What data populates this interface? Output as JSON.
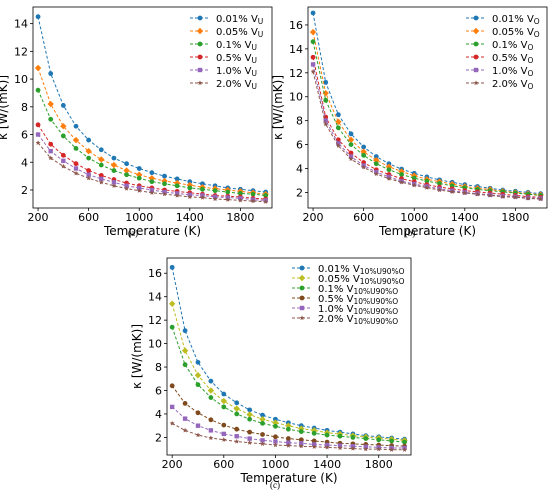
{
  "panels": [
    {
      "caption": "(a)"
    },
    {
      "caption": "(b)"
    },
    {
      "caption": "(c)"
    }
  ],
  "chart_data": [
    {
      "type": "line",
      "panel": "(a)",
      "xlabel": "Temperature (K)",
      "ylabel": "κ [W/(mK)]",
      "xlim": [
        160,
        2050
      ],
      "ylim": [
        0.7,
        15.2
      ],
      "xticks": [
        200,
        600,
        1000,
        1400,
        1800
      ],
      "yticks": [
        2,
        4,
        6,
        8,
        10,
        12,
        14
      ],
      "grid": false,
      "legend_position": "top-right",
      "x": [
        200,
        300,
        400,
        500,
        600,
        700,
        800,
        900,
        1000,
        1100,
        1200,
        1300,
        1400,
        1500,
        1600,
        1700,
        1800,
        1900,
        2000
      ],
      "series": [
        {
          "label_main": "0.01% V",
          "label_sub": "U",
          "color": "#1f77b4",
          "marker": "circle",
          "values": [
            14.5,
            10.4,
            8.1,
            6.6,
            5.6,
            4.9,
            4.3,
            3.9,
            3.55,
            3.25,
            3.0,
            2.8,
            2.6,
            2.45,
            2.3,
            2.15,
            2.05,
            1.95,
            1.85
          ]
        },
        {
          "label_main": "0.05% V",
          "label_sub": "U",
          "color": "#ff7f0e",
          "marker": "diamond",
          "values": [
            10.8,
            8.2,
            6.6,
            5.6,
            4.8,
            4.2,
            3.8,
            3.4,
            3.1,
            2.85,
            2.65,
            2.5,
            2.35,
            2.2,
            2.1,
            2.0,
            1.9,
            1.8,
            1.7
          ]
        },
        {
          "label_main": "0.1% V",
          "label_sub": "U",
          "color": "#2ca02c",
          "marker": "circle",
          "values": [
            9.2,
            7.1,
            5.9,
            5.0,
            4.3,
            3.8,
            3.4,
            3.1,
            2.85,
            2.6,
            2.45,
            2.3,
            2.15,
            2.05,
            1.95,
            1.85,
            1.75,
            1.7,
            1.6
          ]
        },
        {
          "label_main": "0.5% V",
          "label_sub": "U",
          "color": "#d62728",
          "marker": "circle",
          "values": [
            6.7,
            5.3,
            4.5,
            3.9,
            3.4,
            3.05,
            2.75,
            2.5,
            2.3,
            2.15,
            2.0,
            1.9,
            1.8,
            1.7,
            1.6,
            1.55,
            1.5,
            1.4,
            1.35
          ]
        },
        {
          "label_main": "1.0% V",
          "label_sub": "U",
          "color": "#9467bd",
          "marker": "square",
          "values": [
            6.0,
            4.8,
            4.1,
            3.55,
            3.1,
            2.8,
            2.55,
            2.3,
            2.15,
            2.0,
            1.85,
            1.75,
            1.65,
            1.6,
            1.5,
            1.45,
            1.4,
            1.3,
            1.25
          ]
        },
        {
          "label_main": "2.0% V",
          "label_sub": "U",
          "color": "#8c564b",
          "marker": "star",
          "values": [
            5.4,
            4.3,
            3.7,
            3.2,
            2.85,
            2.55,
            2.3,
            2.1,
            1.95,
            1.8,
            1.7,
            1.6,
            1.5,
            1.45,
            1.35,
            1.3,
            1.25,
            1.2,
            1.15
          ]
        }
      ]
    },
    {
      "type": "line",
      "panel": "(b)",
      "xlabel": "Temperature (K)",
      "ylabel": "κ [W/(mK)]",
      "xlim": [
        160,
        2050
      ],
      "ylim": [
        0.7,
        17.5
      ],
      "xticks": [
        200,
        600,
        1000,
        1400,
        1800
      ],
      "yticks": [
        2,
        4,
        6,
        8,
        10,
        12,
        14,
        16
      ],
      "grid": false,
      "legend_position": "top-right",
      "x": [
        200,
        300,
        400,
        500,
        600,
        700,
        800,
        900,
        1000,
        1100,
        1200,
        1300,
        1400,
        1500,
        1600,
        1700,
        1800,
        1900,
        2000
      ],
      "series": [
        {
          "label_main": "0.01% V",
          "label_sub": "O",
          "color": "#1f77b4",
          "marker": "circle",
          "values": [
            17.0,
            11.2,
            8.5,
            6.9,
            5.8,
            5.0,
            4.4,
            3.95,
            3.6,
            3.3,
            3.05,
            2.85,
            2.65,
            2.5,
            2.35,
            2.2,
            2.1,
            2.0,
            1.9
          ]
        },
        {
          "label_main": "0.05% V",
          "label_sub": "O",
          "color": "#ff7f0e",
          "marker": "diamond",
          "values": [
            15.4,
            10.3,
            7.9,
            6.4,
            5.4,
            4.7,
            4.15,
            3.75,
            3.4,
            3.1,
            2.9,
            2.7,
            2.5,
            2.35,
            2.25,
            2.1,
            2.0,
            1.9,
            1.8
          ]
        },
        {
          "label_main": "0.1% V",
          "label_sub": "O",
          "color": "#2ca02c",
          "marker": "circle",
          "values": [
            14.6,
            9.7,
            7.4,
            6.0,
            5.1,
            4.4,
            3.9,
            3.5,
            3.2,
            2.95,
            2.75,
            2.55,
            2.4,
            2.25,
            2.15,
            2.05,
            1.95,
            1.85,
            1.75
          ]
        },
        {
          "label_main": "0.5% V",
          "label_sub": "O",
          "color": "#d62728",
          "marker": "circle",
          "values": [
            13.3,
            8.3,
            6.4,
            5.3,
            4.5,
            3.9,
            3.5,
            3.15,
            2.9,
            2.65,
            2.45,
            2.3,
            2.15,
            2.05,
            1.95,
            1.85,
            1.75,
            1.65,
            1.6
          ]
        },
        {
          "label_main": "1.0% V",
          "label_sub": "O",
          "color": "#9467bd",
          "marker": "square",
          "values": [
            12.7,
            8.0,
            6.1,
            5.0,
            4.25,
            3.7,
            3.3,
            2.95,
            2.7,
            2.5,
            2.3,
            2.15,
            2.0,
            1.9,
            1.8,
            1.7,
            1.65,
            1.55,
            1.5
          ]
        },
        {
          "label_main": "2.0% V",
          "label_sub": "O",
          "color": "#8c564b",
          "marker": "star",
          "values": [
            12.1,
            7.7,
            5.9,
            4.8,
            4.1,
            3.55,
            3.15,
            2.85,
            2.6,
            2.4,
            2.2,
            2.05,
            1.95,
            1.85,
            1.75,
            1.65,
            1.6,
            1.5,
            1.45
          ]
        }
      ]
    },
    {
      "type": "line",
      "panel": "(c)",
      "xlabel": "Temperature (K)",
      "ylabel": "κ [W/(mK)]",
      "xlim": [
        160,
        2050
      ],
      "ylim": [
        0.5,
        17.3
      ],
      "xticks": [
        200,
        600,
        1000,
        1400,
        1800
      ],
      "yticks": [
        2,
        4,
        6,
        8,
        10,
        12,
        14,
        16
      ],
      "grid": false,
      "legend_position": "top-right",
      "x": [
        200,
        300,
        400,
        500,
        600,
        700,
        800,
        900,
        1000,
        1100,
        1200,
        1300,
        1400,
        1500,
        1600,
        1700,
        1800,
        1900,
        2000
      ],
      "series": [
        {
          "label_main": "0.01% V",
          "label_sub": "10%U90%O",
          "color": "#1f77b4",
          "marker": "circle",
          "values": [
            16.5,
            11.1,
            8.4,
            6.8,
            5.7,
            4.95,
            4.35,
            3.9,
            3.55,
            3.25,
            3.0,
            2.8,
            2.6,
            2.45,
            2.3,
            2.15,
            2.05,
            1.95,
            1.85
          ]
        },
        {
          "label_main": "0.05% V",
          "label_sub": "10%U90%O",
          "color": "#bcbd22",
          "marker": "diamond",
          "values": [
            13.4,
            9.4,
            7.3,
            6.0,
            5.1,
            4.45,
            3.95,
            3.55,
            3.25,
            3.0,
            2.75,
            2.6,
            2.4,
            2.3,
            2.15,
            2.05,
            1.95,
            1.85,
            1.75
          ]
        },
        {
          "label_main": "0.1% V",
          "label_sub": "10%U90%O",
          "color": "#2ca02c",
          "marker": "circle",
          "values": [
            11.4,
            8.2,
            6.5,
            5.4,
            4.6,
            4.0,
            3.55,
            3.2,
            2.95,
            2.7,
            2.5,
            2.35,
            2.2,
            2.1,
            2.0,
            1.9,
            1.8,
            1.7,
            1.6
          ]
        },
        {
          "label_main": "0.5% V",
          "label_sub": "10%U90%O",
          "color": "#7f4a1e",
          "marker": "circle",
          "values": [
            6.4,
            4.9,
            4.1,
            3.5,
            3.05,
            2.7,
            2.45,
            2.25,
            2.05,
            1.9,
            1.8,
            1.7,
            1.6,
            1.5,
            1.45,
            1.4,
            1.35,
            1.3,
            1.25
          ]
        },
        {
          "label_main": "1.0% V",
          "label_sub": "10%U90%O",
          "color": "#9467bd",
          "marker": "square",
          "values": [
            4.6,
            3.6,
            3.0,
            2.6,
            2.3,
            2.1,
            1.9,
            1.75,
            1.65,
            1.55,
            1.5,
            1.4,
            1.35,
            1.3,
            1.25,
            1.2,
            1.15,
            1.1,
            1.1
          ]
        },
        {
          "label_main": "2.0% V",
          "label_sub": "10%U90%O",
          "color": "#8c564b",
          "marker": "star",
          "values": [
            3.2,
            2.6,
            2.2,
            1.95,
            1.8,
            1.65,
            1.55,
            1.45,
            1.35,
            1.3,
            1.25,
            1.2,
            1.15,
            1.1,
            1.05,
            1.0,
            1.0,
            0.95,
            0.95
          ]
        }
      ]
    }
  ]
}
